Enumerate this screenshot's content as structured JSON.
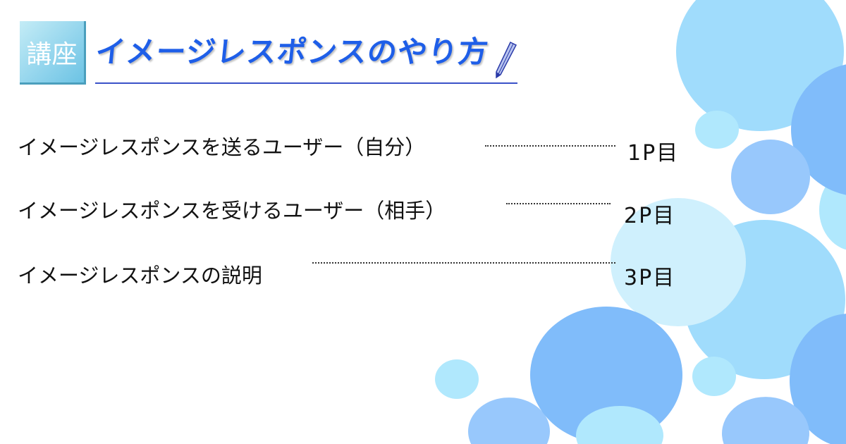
{
  "header": {
    "badge": "講座",
    "title": "イメージレスポンスのやり方"
  },
  "toc": [
    {
      "label": "イメージレスポンスを送るユーザー（自分）",
      "page": "1P目"
    },
    {
      "label": "イメージレスポンスを受けるユーザー（相手）",
      "page": "2P目"
    },
    {
      "label": "イメージレスポンスの説明",
      "page": "3P目"
    }
  ],
  "colors": {
    "title": "#1e5ee8",
    "bubble_light": "#a0dcfc",
    "bubble_blue": "#80bcfa",
    "bubble_mid": "#98c8fc",
    "bubble_pale": "#b0e8fd",
    "bubble_palest": "#cff0fd"
  }
}
